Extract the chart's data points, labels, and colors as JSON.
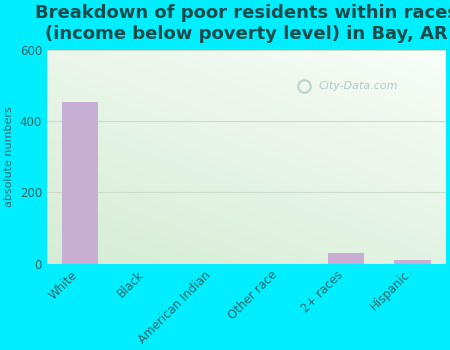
{
  "title": "Breakdown of poor residents within races\n(income below poverty level) in Bay, AR",
  "categories": [
    "White",
    "Black",
    "American Indian",
    "Other race",
    "2+ races",
    "Hispanic"
  ],
  "values": [
    453,
    0,
    0,
    0,
    30,
    10
  ],
  "bar_color": "#c9aed4",
  "ylabel": "absolute numbers",
  "ylim": [
    0,
    600
  ],
  "yticks": [
    0,
    200,
    400,
    600
  ],
  "background_outer": "#00eeff",
  "background_inner_grad_top": "#d4ecd4",
  "background_inner_grad_bottom": "#f5fdf5",
  "title_fontsize": 13,
  "title_color": "#1a4a4a",
  "watermark": "City-Data.com",
  "ylabel_fontsize": 8,
  "tick_fontsize": 8.5,
  "grid_color": "#ccddcc"
}
